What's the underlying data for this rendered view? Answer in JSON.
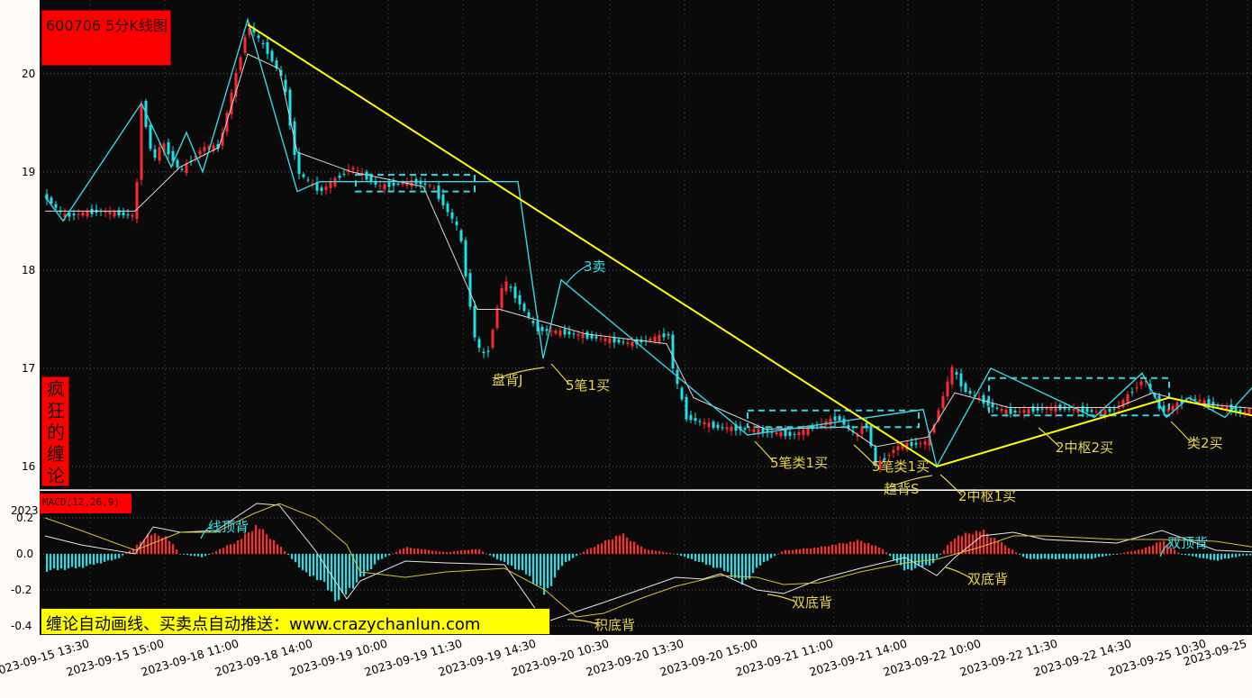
{
  "title": "600706 5分K线图",
  "side_label": "疯狂的缠论",
  "macd_label": "MACD(12,26,9)",
  "promo": "缠论自动画线、买卖点自动推送：www.crazychanlun.com",
  "year_label": "2023",
  "colors": {
    "up": "#ff2a2a",
    "down": "#1de0e8",
    "stroke": "#36d6e6",
    "trend": "#ffff00",
    "annot": "#e8d24a",
    "annot_cyan": "#3ae0ea",
    "bg": "#0a0a0a"
  },
  "annotations": [
    {
      "text": "3卖",
      "color": "cyan"
    },
    {
      "text": "盘背J",
      "color": "yellow"
    },
    {
      "text": "5笔1买",
      "color": "yellow"
    },
    {
      "text": "5笔类1买",
      "color": "yellow"
    },
    {
      "text": "5笔类1买",
      "color": "yellow"
    },
    {
      "text": "趋背S",
      "color": "yellow"
    },
    {
      "text": "2中枢1买",
      "color": "yellow"
    },
    {
      "text": "2中枢2买",
      "color": "yellow"
    },
    {
      "text": "类2买",
      "color": "yellow"
    },
    {
      "text": "线顶背",
      "color": "cyan"
    },
    {
      "text": "积底背",
      "color": "yellow"
    },
    {
      "text": "双底背",
      "color": "yellow"
    },
    {
      "text": "双底背",
      "color": "yellow"
    },
    {
      "text": "双顶背",
      "color": "cyan"
    }
  ],
  "chart_data": [
    {
      "type": "candlestick",
      "title": "600706 5分K线图",
      "x_tick_labels": [
        "2023-09-15 13:30",
        "2023-09-15 15:00",
        "2023-09-18 11:00",
        "2023-09-18 14:00",
        "2023-09-19 10:00",
        "2023-09-19 11:30",
        "2023-09-19 14:30",
        "2023-09-20 10:30",
        "2023-09-20 13:30",
        "2023-09-20 15:00",
        "2023-09-21 11:00",
        "2023-09-21 14:00",
        "2023-09-22 10:00",
        "2023-09-22 11:30",
        "2023-09-22 14:30",
        "2023-09-25 10:30",
        "2023-09-25"
      ],
      "y_ticks": [
        16,
        17,
        18,
        19,
        20
      ],
      "ylim": [
        15.77,
        20.75
      ],
      "grid": true,
      "price_path": [
        [
          0,
          18.75
        ],
        [
          20,
          18.55
        ],
        [
          60,
          18.6
        ],
        [
          100,
          18.55
        ],
        [
          107,
          19.7
        ],
        [
          120,
          19.1
        ],
        [
          130,
          19.3
        ],
        [
          150,
          19.0
        ],
        [
          175,
          19.25
        ],
        [
          193,
          19.25
        ],
        [
          225,
          20.5
        ],
        [
          245,
          20.25
        ],
        [
          265,
          19.92
        ],
        [
          280,
          19.0
        ],
        [
          305,
          18.8
        ],
        [
          340,
          19.05
        ],
        [
          370,
          18.85
        ],
        [
          410,
          18.9
        ],
        [
          430,
          18.85
        ],
        [
          460,
          18.4
        ],
        [
          478,
          17.25
        ],
        [
          490,
          17.1
        ],
        [
          505,
          17.75
        ],
        [
          510,
          17.9
        ],
        [
          545,
          17.4
        ],
        [
          585,
          17.35
        ],
        [
          650,
          17.25
        ],
        [
          695,
          17.35
        ],
        [
          697,
          17.0
        ],
        [
          712,
          16.5
        ],
        [
          745,
          16.4
        ],
        [
          775,
          16.38
        ],
        [
          830,
          16.32
        ],
        [
          880,
          16.5
        ],
        [
          890,
          16.4
        ],
        [
          902,
          16.3
        ],
        [
          910,
          16.5
        ],
        [
          922,
          16.0
        ],
        [
          945,
          16.2
        ],
        [
          980,
          16.25
        ],
        [
          1007,
          17.0
        ],
        [
          1020,
          16.78
        ],
        [
          1053,
          16.6
        ],
        [
          1070,
          16.55
        ],
        [
          1120,
          16.6
        ],
        [
          1175,
          16.55
        ],
        [
          1190,
          16.6
        ],
        [
          1220,
          16.9
        ],
        [
          1240,
          16.55
        ],
        [
          1270,
          16.7
        ],
        [
          1300,
          16.62
        ],
        [
          1330,
          16.55
        ],
        [
          1345,
          16.6
        ],
        [
          1355,
          16.5
        ],
        [
          1390,
          16.5
        ]
      ],
      "ma_path": [
        [
          0,
          18.6
        ],
        [
          60,
          18.6
        ],
        [
          100,
          18.6
        ],
        [
          150,
          19.05
        ],
        [
          193,
          19.25
        ],
        [
          225,
          20.2
        ],
        [
          260,
          20.05
        ],
        [
          280,
          19.2
        ],
        [
          340,
          19.0
        ],
        [
          420,
          18.85
        ],
        [
          480,
          17.6
        ],
        [
          505,
          17.6
        ],
        [
          600,
          17.35
        ],
        [
          690,
          17.25
        ],
        [
          720,
          16.7
        ],
        [
          800,
          16.38
        ],
        [
          890,
          16.4
        ],
        [
          922,
          16.2
        ],
        [
          980,
          16.3
        ],
        [
          1010,
          16.75
        ],
        [
          1070,
          16.6
        ],
        [
          1190,
          16.6
        ],
        [
          1230,
          16.75
        ],
        [
          1270,
          16.65
        ],
        [
          1390,
          16.55
        ]
      ],
      "strokes": [
        [
          0,
          18.75
        ],
        [
          20,
          18.5
        ],
        [
          107,
          19.7
        ],
        [
          140,
          19.05
        ],
        [
          157,
          19.4
        ],
        [
          175,
          19.0
        ],
        [
          225,
          20.55
        ],
        [
          280,
          18.8
        ],
        [
          305,
          18.9
        ],
        [
          525,
          18.9
        ],
        [
          553,
          17.1
        ],
        [
          573,
          17.9
        ],
        [
          780,
          16.32
        ],
        [
          975,
          16.58
        ],
        [
          990,
          16.0
        ],
        [
          1050,
          17.0
        ],
        [
          1165,
          16.5
        ],
        [
          1218,
          16.95
        ],
        [
          1245,
          16.5
        ],
        [
          1270,
          16.7
        ],
        [
          1310,
          16.5
        ],
        [
          1350,
          16.9
        ]
      ],
      "trend_lines": [
        [
          [
            225,
            20.5
          ],
          [
            990,
            16.0
          ]
        ],
        [
          [
            990,
            16.0
          ],
          [
            1248,
            16.7
          ]
        ],
        [
          [
            1248,
            16.7
          ],
          [
            1350,
            16.5
          ]
        ]
      ],
      "zhongshu": [
        {
          "x0": 345,
          "x1": 477,
          "y_low": 18.8,
          "y_high": 18.97
        },
        {
          "x0": 780,
          "x1": 970,
          "y_low": 16.4,
          "y_high": 16.57
        },
        {
          "x0": 1048,
          "x1": 1248,
          "y_low": 16.52,
          "y_high": 16.9
        }
      ]
    },
    {
      "type": "macd",
      "title": "MACD(12,26,9)",
      "y_ticks": [
        -0.4,
        -0.2,
        0.0,
        0.2
      ],
      "ylim": [
        -0.45,
        0.35
      ],
      "hist_path": [
        [
          0,
          -0.1
        ],
        [
          40,
          -0.08
        ],
        [
          80,
          -0.03
        ],
        [
          100,
          0.04
        ],
        [
          115,
          0.12
        ],
        [
          135,
          0.1
        ],
        [
          150,
          0.0
        ],
        [
          175,
          -0.02
        ],
        [
          215,
          0.08
        ],
        [
          235,
          0.17
        ],
        [
          260,
          0.05
        ],
        [
          290,
          -0.12
        ],
        [
          305,
          -0.15
        ],
        [
          325,
          -0.28
        ],
        [
          350,
          -0.15
        ],
        [
          370,
          -0.04
        ],
        [
          400,
          0.04
        ],
        [
          445,
          0.01
        ],
        [
          480,
          0.03
        ],
        [
          535,
          -0.12
        ],
        [
          555,
          -0.24
        ],
        [
          575,
          -0.06
        ],
        [
          600,
          0.02
        ],
        [
          640,
          0.12
        ],
        [
          665,
          0.03
        ],
        [
          700,
          0.0
        ],
        [
          755,
          -0.1
        ],
        [
          775,
          -0.18
        ],
        [
          795,
          -0.06
        ],
        [
          820,
          0.02
        ],
        [
          860,
          0.04
        ],
        [
          905,
          0.08
        ],
        [
          930,
          0.03
        ],
        [
          955,
          -0.1
        ],
        [
          985,
          -0.06
        ],
        [
          1010,
          0.1
        ],
        [
          1040,
          0.14
        ],
        [
          1075,
          0.02
        ],
        [
          1090,
          -0.03
        ],
        [
          1160,
          -0.03
        ],
        [
          1220,
          0.03
        ],
        [
          1240,
          0.08
        ],
        [
          1260,
          0.0
        ],
        [
          1300,
          -0.04
        ],
        [
          1330,
          -0.01
        ],
        [
          1390,
          0.0
        ]
      ],
      "dif_path": [
        [
          0,
          0.1
        ],
        [
          40,
          0.05
        ],
        [
          100,
          0.0
        ],
        [
          120,
          0.15
        ],
        [
          150,
          0.12
        ],
        [
          190,
          0.13
        ],
        [
          235,
          0.28
        ],
        [
          260,
          0.27
        ],
        [
          300,
          0.02
        ],
        [
          335,
          -0.25
        ],
        [
          350,
          -0.15
        ],
        [
          400,
          -0.04
        ],
        [
          445,
          -0.05
        ],
        [
          510,
          -0.06
        ],
        [
          555,
          -0.38
        ],
        [
          590,
          -0.32
        ],
        [
          620,
          -0.27
        ],
        [
          660,
          -0.2
        ],
        [
          700,
          -0.13
        ],
        [
          730,
          -0.14
        ],
        [
          750,
          -0.11
        ],
        [
          790,
          -0.2
        ],
        [
          820,
          -0.22
        ],
        [
          860,
          -0.14
        ],
        [
          905,
          -0.08
        ],
        [
          955,
          -0.02
        ],
        [
          990,
          -0.12
        ],
        [
          1010,
          -0.02
        ],
        [
          1040,
          0.1
        ],
        [
          1075,
          0.12
        ],
        [
          1110,
          0.08
        ],
        [
          1190,
          0.06
        ],
        [
          1240,
          0.13
        ],
        [
          1300,
          0.02
        ],
        [
          1390,
          0.0
        ]
      ],
      "dea_path": [
        [
          0,
          0.2
        ],
        [
          40,
          0.13
        ],
        [
          100,
          0.02
        ],
        [
          150,
          0.12
        ],
        [
          190,
          0.12
        ],
        [
          230,
          0.22
        ],
        [
          260,
          0.28
        ],
        [
          300,
          0.2
        ],
        [
          335,
          0.05
        ],
        [
          350,
          -0.1
        ],
        [
          400,
          -0.13
        ],
        [
          445,
          -0.1
        ],
        [
          510,
          -0.08
        ],
        [
          555,
          -0.2
        ],
        [
          590,
          -0.35
        ],
        [
          620,
          -0.33
        ],
        [
          660,
          -0.25
        ],
        [
          700,
          -0.18
        ],
        [
          750,
          -0.12
        ],
        [
          790,
          -0.13
        ],
        [
          820,
          -0.17
        ],
        [
          860,
          -0.16
        ],
        [
          905,
          -0.1
        ],
        [
          955,
          -0.05
        ],
        [
          990,
          -0.03
        ],
        [
          1040,
          0.04
        ],
        [
          1075,
          0.1
        ],
        [
          1110,
          0.1
        ],
        [
          1190,
          0.08
        ],
        [
          1240,
          0.08
        ],
        [
          1300,
          0.07
        ],
        [
          1390,
          0.0
        ]
      ]
    }
  ]
}
